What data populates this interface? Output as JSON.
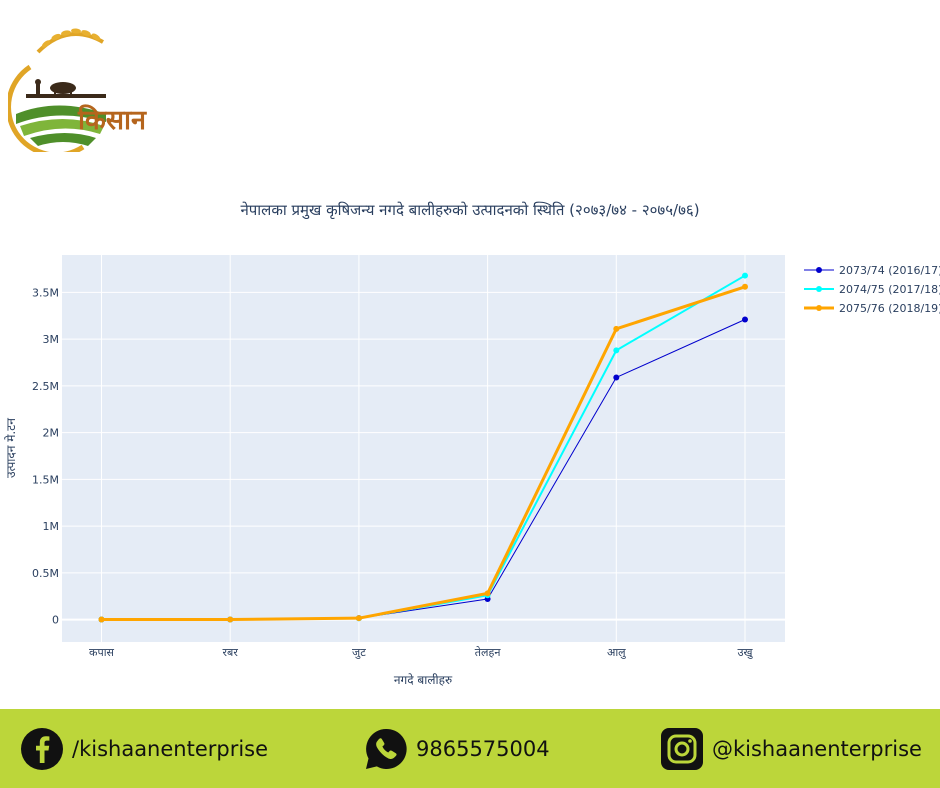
{
  "brand": {
    "name": "किसान"
  },
  "chart_data": {
    "type": "line",
    "title": "नेपालका प्रमुख कृषिजन्य नगदे बालीहरुको उत्पादनको स्थिति (२०७३/७४ - २०७५/७६)",
    "xlabel": "नगदे बालीहरु",
    "ylabel": "उत्पादन मे.टन",
    "categories": [
      "कपास",
      "रबर",
      "जुट",
      "तेलहन",
      "आलु",
      "उखु"
    ],
    "ylim": [
      -240000,
      3900000
    ],
    "yticks": [
      0,
      500000,
      1000000,
      1500000,
      2000000,
      2500000,
      3000000,
      3500000
    ],
    "ytick_labels": [
      "0",
      "0.5M",
      "1M",
      "1.5M",
      "2M",
      "2.5M",
      "3M",
      "3.5M"
    ],
    "grid": true,
    "legend_position": "top-right",
    "series": [
      {
        "name": "2073/74 (2016/17)",
        "color": "#0000cd",
        "width": 1,
        "values": [
          500,
          300,
          15000,
          220000,
          2590000,
          3210000
        ]
      },
      {
        "name": "2074/75 (2017/18)",
        "color": "#00ffff",
        "width": 2,
        "values": [
          500,
          300,
          14000,
          260000,
          2880000,
          3680000
        ]
      },
      {
        "name": "2075/76 (2018/19)",
        "color": "#ffa500",
        "width": 3,
        "values": [
          500,
          300,
          15000,
          280000,
          3110000,
          3560000
        ]
      }
    ]
  },
  "footer": {
    "facebook": "/kishaanenterprise",
    "phone": "9865575004",
    "instagram": "@kishaanenterprise"
  },
  "icons": {
    "facebook": "facebook-icon",
    "phone": "whatsapp-phone-icon",
    "instagram": "instagram-icon"
  }
}
